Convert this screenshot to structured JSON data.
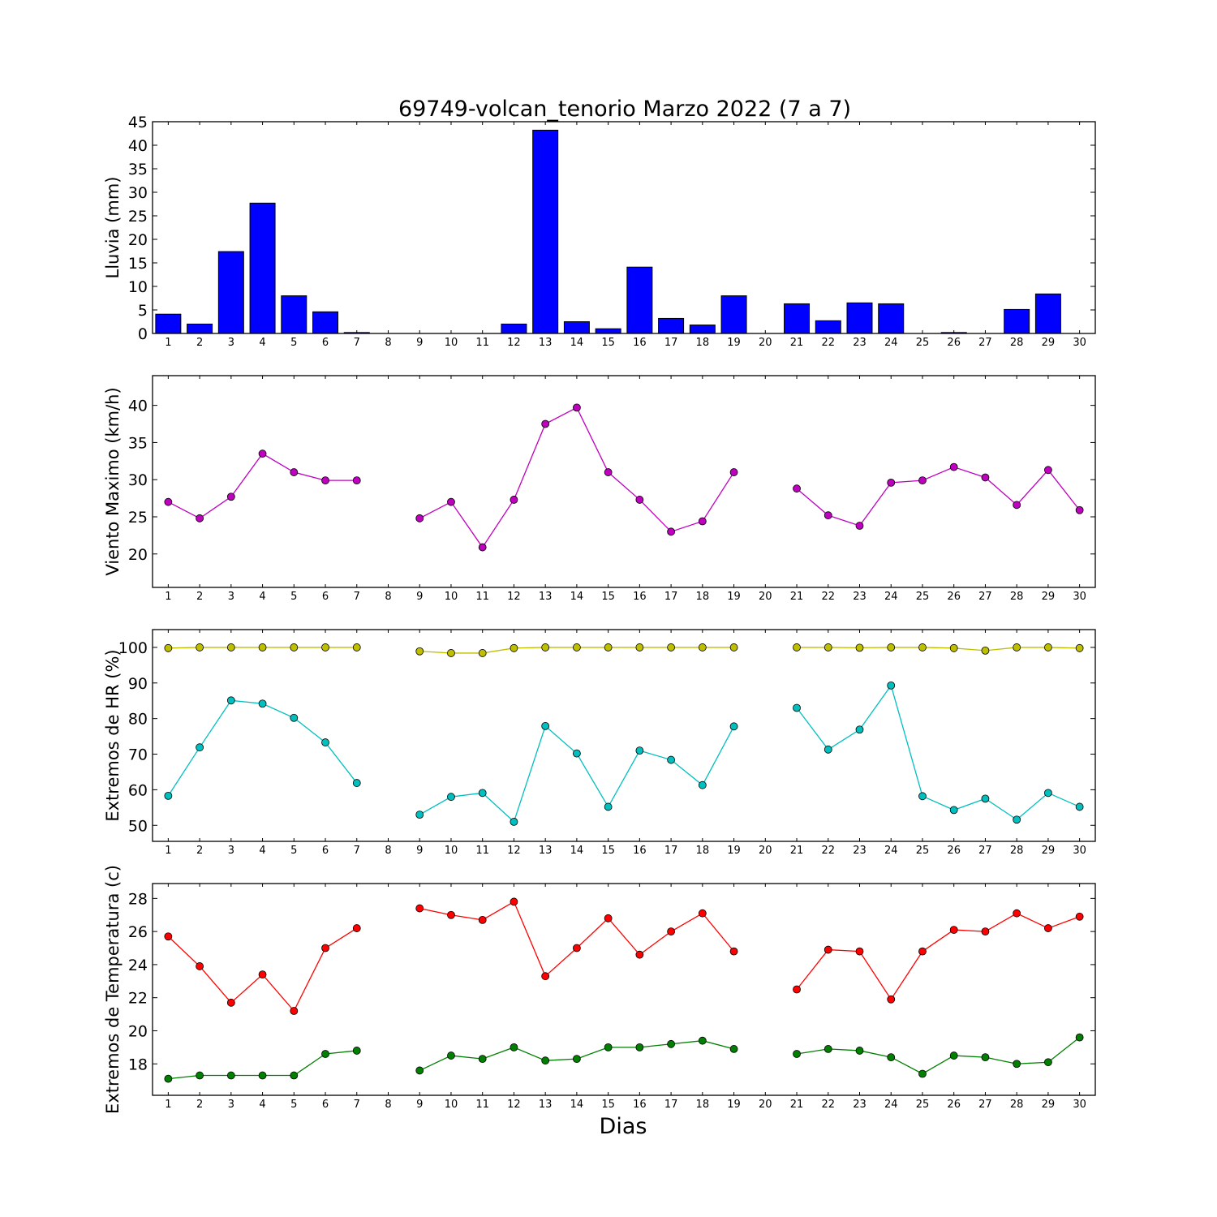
{
  "chart_data": [
    {
      "type": "bar",
      "title": "69749-volcan_tenorio Marzo 2022  (7 a 7)",
      "ylabel": "Lluvia (mm)",
      "xlabel": "",
      "ylim": [
        0,
        45
      ],
      "yticks": [
        0,
        5,
        10,
        15,
        20,
        25,
        30,
        35,
        40,
        45
      ],
      "x": [
        1,
        2,
        3,
        4,
        5,
        6,
        7,
        8,
        9,
        10,
        11,
        12,
        13,
        14,
        15,
        16,
        17,
        18,
        19,
        20,
        21,
        22,
        23,
        24,
        25,
        26,
        27,
        28,
        29,
        30
      ],
      "series": [
        {
          "color": "#0000ff",
          "values": [
            4.1,
            2.0,
            17.4,
            27.7,
            8.0,
            4.6,
            0.2,
            0,
            0,
            0,
            0,
            2.0,
            43.2,
            2.5,
            1.0,
            14.1,
            3.2,
            1.8,
            8.0,
            0,
            6.3,
            2.7,
            6.5,
            6.3,
            0,
            0.2,
            0,
            5.1,
            8.4,
            0
          ]
        }
      ]
    },
    {
      "type": "line",
      "title": "",
      "ylabel": "Viento Maximo (km/h)",
      "xlabel": "",
      "ylim": [
        15.5,
        44
      ],
      "yticks": [
        20,
        25,
        30,
        35,
        40
      ],
      "x": [
        1,
        2,
        3,
        4,
        5,
        6,
        7,
        8,
        9,
        10,
        11,
        12,
        13,
        14,
        15,
        16,
        17,
        18,
        19,
        20,
        21,
        22,
        23,
        24,
        25,
        26,
        27,
        28,
        29,
        30
      ],
      "series": [
        {
          "color": "#bf00bf",
          "values": [
            27.0,
            24.8,
            27.7,
            33.5,
            31.0,
            29.9,
            29.9,
            null,
            24.8,
            27.0,
            20.9,
            27.3,
            37.5,
            39.7,
            31.0,
            27.3,
            23.0,
            24.4,
            31.0,
            null,
            28.8,
            25.2,
            23.8,
            29.6,
            29.9,
            31.7,
            30.3,
            26.6,
            31.3,
            25.9
          ]
        }
      ]
    },
    {
      "type": "line",
      "title": "",
      "ylabel": "Extremos de HR (%)",
      "xlabel": "",
      "ylim": [
        45.5,
        105
      ],
      "yticks": [
        50,
        60,
        70,
        80,
        90,
        100
      ],
      "x": [
        1,
        2,
        3,
        4,
        5,
        6,
        7,
        8,
        9,
        10,
        11,
        12,
        13,
        14,
        15,
        16,
        17,
        18,
        19,
        20,
        21,
        22,
        23,
        24,
        25,
        26,
        27,
        28,
        29,
        30
      ],
      "series": [
        {
          "color": "#bfbf00",
          "values": [
            99.8,
            100,
            100,
            100,
            100,
            100,
            100,
            null,
            98.9,
            98.4,
            98.4,
            99.8,
            100,
            100,
            100,
            100,
            100,
            100,
            100,
            null,
            100,
            100,
            99.9,
            100,
            100,
            99.8,
            99.1,
            100,
            100,
            99.8
          ]
        },
        {
          "color": "#00bfbf",
          "values": [
            58.3,
            71.9,
            85.1,
            84.2,
            80.2,
            73.3,
            61.9,
            null,
            53.0,
            58.0,
            59.1,
            51.0,
            77.9,
            70.2,
            55.2,
            71.0,
            68.4,
            61.3,
            77.8,
            null,
            83.0,
            71.3,
            76.9,
            89.3,
            58.2,
            54.3,
            57.5,
            51.6,
            59.1,
            55.2
          ]
        }
      ]
    },
    {
      "type": "line",
      "title": "",
      "ylabel": "Extremos de Temperatura (c)",
      "xlabel": "Dias",
      "ylim": [
        16.1,
        28.9
      ],
      "yticks": [
        18,
        20,
        22,
        24,
        26,
        28
      ],
      "x": [
        1,
        2,
        3,
        4,
        5,
        6,
        7,
        8,
        9,
        10,
        11,
        12,
        13,
        14,
        15,
        16,
        17,
        18,
        19,
        20,
        21,
        22,
        23,
        24,
        25,
        26,
        27,
        28,
        29,
        30
      ],
      "series": [
        {
          "color": "#ff0000",
          "values": [
            25.7,
            23.9,
            21.7,
            23.4,
            21.2,
            25.0,
            26.2,
            null,
            27.4,
            27.0,
            26.7,
            27.8,
            23.3,
            25.0,
            26.8,
            24.6,
            26.0,
            27.1,
            24.8,
            null,
            22.5,
            24.9,
            24.8,
            21.9,
            24.8,
            26.1,
            26.0,
            27.1,
            26.2,
            26.9
          ]
        },
        {
          "color": "#007f00",
          "values": [
            17.1,
            17.3,
            17.3,
            17.3,
            17.3,
            18.6,
            18.8,
            null,
            17.6,
            18.5,
            18.3,
            19.0,
            18.2,
            18.3,
            19.0,
            19.0,
            19.2,
            19.4,
            18.9,
            null,
            18.6,
            18.9,
            18.8,
            18.4,
            17.4,
            18.5,
            18.4,
            18.0,
            18.1,
            19.6
          ]
        }
      ]
    }
  ]
}
